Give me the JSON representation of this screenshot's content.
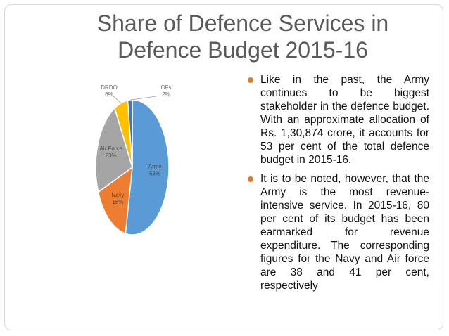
{
  "slide": {
    "title": "Share of Defence Services in Defence Budget 2015-16",
    "bullets": [
      "Like in the past, the Army continues to be biggest stakeholder in the defence budget. With an approximate allocation of Rs. 1,30,874 crore, it accounts for 53 per cent of the total defence budget in 2015-16.",
      "It is to be noted, however, that the Army is the most revenue-intensive service. In 2015-16, 80 per cent of its budget has been earmarked for revenue expenditure. The corresponding figures for the Navy and Air force are 38 and 41 per cent, respectively"
    ]
  },
  "chart_data": {
    "type": "pie",
    "slices": [
      {
        "label": "Army",
        "value": 53,
        "text": "53%",
        "color": "#5b9bd5"
      },
      {
        "label": "Navy",
        "value": 16,
        "text": "16%",
        "color": "#ed7d31"
      },
      {
        "label": "Air Force",
        "value": 23,
        "text": "23%",
        "color": "#a5a5a5"
      },
      {
        "label": "DRDO",
        "value": 6,
        "text": "6%",
        "color": "#ffc000"
      },
      {
        "label": "OFs",
        "value": 2,
        "text": "2%",
        "color": "#4472c4"
      }
    ]
  }
}
